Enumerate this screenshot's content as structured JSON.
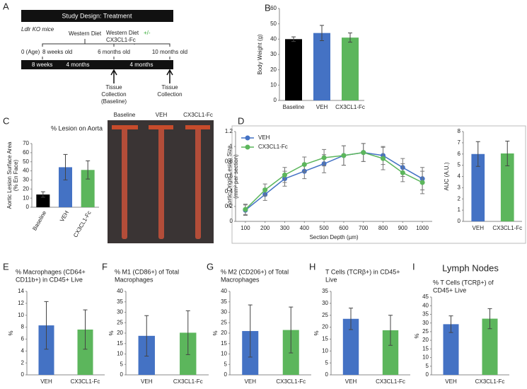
{
  "design": {
    "label": "A",
    "title": "Study Design: Treatment",
    "mice": "Ldlr KO mice",
    "diet1": "Western Diet",
    "diet2": "Western Diet",
    "plusminus": "+/-",
    "drug": "CX3CL1-Fc",
    "ages": [
      "0 (Age)",
      "8 weeks old",
      "6 months old",
      "10 months old"
    ],
    "periods": [
      "8 weeks",
      "4 months",
      "4 months"
    ],
    "collect1": [
      "Tissue",
      "Collection",
      "(Baseline)"
    ],
    "collect2": [
      "Tissue",
      "Collection"
    ]
  },
  "photos": [
    "Baseline",
    "VEH",
    "CX3CL1-Fc"
  ],
  "chart_data": [
    {
      "type": "bar",
      "label": "B",
      "title": [],
      "ylabel": [
        "Body Weight (g)"
      ],
      "categories": [
        "Baseline",
        "VEH",
        "CX3CL1-Fc"
      ],
      "values": [
        40,
        44,
        41
      ],
      "errors": [
        1.5,
        5,
        3
      ],
      "colors": [
        "#000000",
        "#4472c4",
        "#5cb65c"
      ],
      "ylim": [
        0,
        60
      ],
      "yticks": [
        0,
        10,
        20,
        30,
        40,
        50,
        60
      ]
    },
    {
      "type": "bar",
      "label": "C",
      "title": [
        "% Lesion on Aorta"
      ],
      "ylabel": [
        "Aortic Lesion Surface Area",
        "(% En Face)"
      ],
      "categories": [
        "Baseline",
        "VEH",
        "CX3CL1-Fc"
      ],
      "values": [
        14,
        44,
        41
      ],
      "errors": [
        3,
        14,
        10
      ],
      "colors": [
        "#000000",
        "#4472c4",
        "#5cb65c"
      ],
      "ylim": [
        0,
        70
      ],
      "yticks": [
        0,
        10,
        20,
        30,
        40,
        50,
        60,
        70
      ]
    },
    {
      "type": "line",
      "label": "D",
      "title": [],
      "ylabel": [
        "Aortic Origin Lesion Size",
        "(mm² per section)"
      ],
      "xlabel": "Section Depth (µm)",
      "x": [
        100,
        200,
        300,
        400,
        500,
        600,
        700,
        800,
        900,
        1000
      ],
      "series": [
        {
          "name": "VEH",
          "color": "#4472c4",
          "values": [
            0.15,
            0.36,
            0.57,
            0.67,
            0.77,
            0.88,
            0.92,
            0.88,
            0.72,
            0.57
          ],
          "errors": [
            0.07,
            0.08,
            0.1,
            0.1,
            0.12,
            0.13,
            0.12,
            0.12,
            0.12,
            0.15
          ]
        },
        {
          "name": "CX3CL1-Fc",
          "color": "#5cb65c",
          "values": [
            0.16,
            0.42,
            0.62,
            0.76,
            0.85,
            0.88,
            0.92,
            0.84,
            0.65,
            0.52
          ],
          "errors": [
            0.07,
            0.08,
            0.1,
            0.1,
            0.11,
            0.13,
            0.12,
            0.15,
            0.12,
            0.15
          ]
        }
      ],
      "xlim": [
        50,
        1050
      ],
      "xticks": [
        100,
        200,
        300,
        400,
        500,
        600,
        700,
        800,
        900,
        1000
      ],
      "ylim": [
        0,
        1.2
      ],
      "yticks": [
        0,
        0.2,
        0.4,
        0.6,
        0.8,
        1,
        1.2
      ],
      "legend": "upper left"
    },
    {
      "type": "bar",
      "label": "",
      "title": [],
      "ylabel": [
        "AUC (A.U.)"
      ],
      "categories": [
        "VEH",
        "CX3CL1-Fc"
      ],
      "values": [
        6,
        6.05
      ],
      "errors": [
        1.1,
        1.1
      ],
      "colors": [
        "#4472c4",
        "#5cb65c"
      ],
      "ylim": [
        0,
        8
      ],
      "yticks": [
        0,
        1,
        2,
        3,
        4,
        5,
        6,
        7,
        8
      ]
    },
    {
      "type": "bar",
      "label": "E",
      "title": [
        "% Macrophages (CD64+",
        "CD11b+) in CD45+ Live"
      ],
      "ylabel": [
        "%"
      ],
      "categories": [
        "VEH",
        "CX3CL1-Fc"
      ],
      "values": [
        8.3,
        7.6
      ],
      "errors": [
        4,
        3.3
      ],
      "colors": [
        "#4472c4",
        "#5cb65c"
      ],
      "ylim": [
        0,
        14
      ],
      "yticks": [
        0,
        2,
        4,
        6,
        8,
        10,
        12,
        14
      ]
    },
    {
      "type": "bar",
      "label": "F",
      "title": [
        "% M1 (CD86+) of Total",
        "Macrophages"
      ],
      "ylabel": [
        "%"
      ],
      "categories": [
        "VEH",
        "CX3CL1-Fc"
      ],
      "values": [
        18.7,
        20.2
      ],
      "errors": [
        9.7,
        10.5
      ],
      "colors": [
        "#4472c4",
        "#5cb65c"
      ],
      "ylim": [
        0,
        40
      ],
      "yticks": [
        0,
        5,
        10,
        15,
        20,
        25,
        30,
        35,
        40
      ]
    },
    {
      "type": "bar",
      "label": "G",
      "title": [
        "% M2 (CD206+) of Total",
        "Macrophages"
      ],
      "ylabel": [
        "%"
      ],
      "categories": [
        "VEH",
        "CX3CL1-Fc"
      ],
      "values": [
        21,
        21.5
      ],
      "errors": [
        12.5,
        11
      ],
      "colors": [
        "#4472c4",
        "#5cb65c"
      ],
      "ylim": [
        0,
        40
      ],
      "yticks": [
        0,
        5,
        10,
        15,
        20,
        25,
        30,
        35,
        40
      ]
    },
    {
      "type": "bar",
      "label": "H",
      "title": [
        "T Cells (TCRβ+) in CD45+",
        "Live"
      ],
      "ylabel": [
        "%"
      ],
      "categories": [
        "VEH",
        "CX3CL1-Fc"
      ],
      "values": [
        23.5,
        18.7
      ],
      "errors": [
        4.5,
        6.3
      ],
      "colors": [
        "#4472c4",
        "#5cb65c"
      ],
      "ylim": [
        0,
        35
      ],
      "yticks": [
        0,
        5,
        10,
        15,
        20,
        25,
        30,
        35
      ]
    },
    {
      "type": "bar",
      "label": "I",
      "header": "Lymph Nodes",
      "title": [
        "% T Cells (TCRβ+) of",
        "CD45+ Live"
      ],
      "ylabel": [
        "%"
      ],
      "categories": [
        "VEH",
        "CX3CL1-Fc"
      ],
      "values": [
        29.3,
        32.5
      ],
      "errors": [
        4.8,
        5.8
      ],
      "colors": [
        "#4472c4",
        "#5cb65c"
      ],
      "ylim": [
        0,
        45
      ],
      "yticks": [
        0,
        5,
        10,
        15,
        20,
        25,
        30,
        35,
        40,
        45
      ]
    }
  ]
}
